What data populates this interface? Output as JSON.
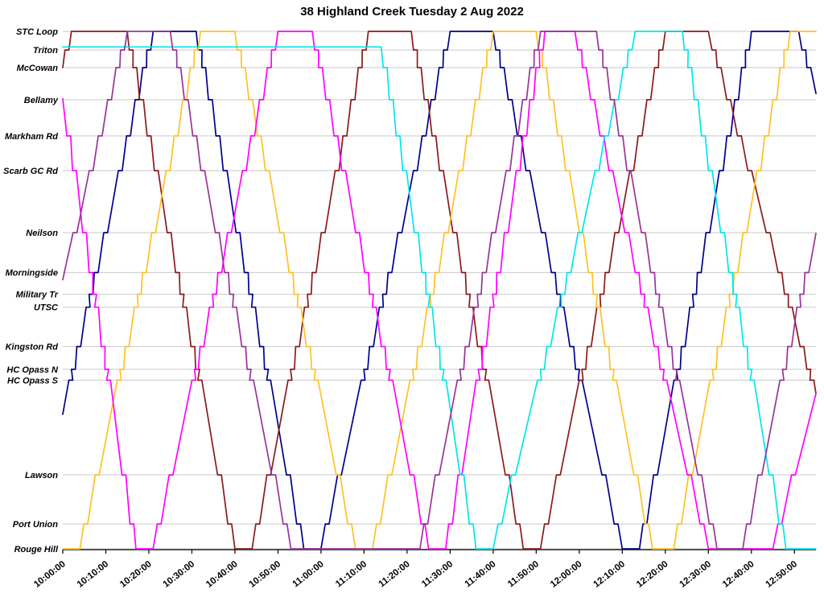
{
  "title": "38 Highland Creek Tuesday 2 Aug 2022",
  "chart_data": {
    "type": "line",
    "subtype": "marey-time-distance-diagram",
    "title": "38 Highland Creek Tuesday 2 Aug 2022",
    "xlabel": "",
    "ylabel": "",
    "grid": "horizontal-only",
    "legend_position": "none",
    "x_axis": {
      "unit": "clock-time",
      "start_min": 0,
      "end_min": 175,
      "tick_interval_min": 10,
      "tick_labels": [
        "10:00:00",
        "10:10:00",
        "10:20:00",
        "10:30:00",
        "10:40:00",
        "10:50:00",
        "11:00:00",
        "11:10:00",
        "11:20:00",
        "11:30:00",
        "11:40:00",
        "11:50:00",
        "12:00:00",
        "12:10:00",
        "12:20:00",
        "12:30:00",
        "12:40:00",
        "12:50:00"
      ]
    },
    "y_axis": {
      "range": [
        0,
        100
      ],
      "stops": [
        {
          "name": "STC Loop",
          "position": 100
        },
        {
          "name": "Triton",
          "position": 96.4
        },
        {
          "name": "McCowan",
          "position": 93.0
        },
        {
          "name": "Bellamy",
          "position": 86.8
        },
        {
          "name": "Markham Rd",
          "position": 79.8
        },
        {
          "name": "Scarb GC Rd",
          "position": 73.1
        },
        {
          "name": "Neilson",
          "position": 61.1
        },
        {
          "name": "Morningside",
          "position": 53.4
        },
        {
          "name": "Military Tr",
          "position": 49.2
        },
        {
          "name": "UTSC",
          "position": 46.7
        },
        {
          "name": "Kingston Rd",
          "position": 39.1
        },
        {
          "name": "HC Opass N",
          "position": 34.7
        },
        {
          "name": "HC Opass S",
          "position": 32.6
        },
        {
          "name": "Lawson",
          "position": 14.3
        },
        {
          "name": "Port Union",
          "position": 4.8
        },
        {
          "name": "Rouge Hill",
          "position": 0
        }
      ]
    },
    "series": [
      {
        "name": "run-navy",
        "color": "#00008B",
        "points": [
          [
            0,
            26
          ],
          [
            21,
            100
          ],
          [
            31,
            100
          ],
          [
            56,
            0
          ],
          [
            60,
            0
          ],
          [
            90,
            100
          ],
          [
            100,
            100
          ],
          [
            130,
            0
          ],
          [
            134,
            0
          ],
          [
            160,
            100
          ],
          [
            171,
            100
          ],
          [
            175,
            88
          ]
        ]
      },
      {
        "name": "run-darkred",
        "color": "#8B1A1A",
        "points": [
          [
            0,
            93
          ],
          [
            2,
            100
          ],
          [
            15,
            100
          ],
          [
            40,
            0
          ],
          [
            44,
            0
          ],
          [
            71,
            100
          ],
          [
            81,
            100
          ],
          [
            107,
            0
          ],
          [
            111,
            0
          ],
          [
            140,
            100
          ],
          [
            150,
            100
          ],
          [
            175,
            30
          ]
        ]
      },
      {
        "name": "run-gold",
        "color": "#FFC125",
        "points": [
          [
            0,
            0
          ],
          [
            4,
            0
          ],
          [
            32,
            100
          ],
          [
            40,
            100
          ],
          [
            68,
            0
          ],
          [
            72,
            0
          ],
          [
            100,
            100
          ],
          [
            110,
            100
          ],
          [
            137,
            0
          ],
          [
            142,
            0
          ],
          [
            169,
            100
          ],
          [
            175,
            100
          ]
        ]
      },
      {
        "name": "run-magenta",
        "color": "#FF00FF",
        "points": [
          [
            0,
            87
          ],
          [
            17,
            0
          ],
          [
            21,
            0
          ],
          [
            50,
            100
          ],
          [
            58,
            100
          ],
          [
            85,
            0
          ],
          [
            89,
            0
          ],
          [
            112,
            100
          ],
          [
            119,
            100
          ],
          [
            150,
            0
          ],
          [
            165,
            0
          ],
          [
            175,
            30
          ]
        ]
      },
      {
        "name": "run-cyan",
        "color": "#00E5EE",
        "points": [
          [
            0,
            97
          ],
          [
            74,
            97
          ],
          [
            96,
            0
          ],
          [
            100,
            0
          ],
          [
            133,
            100
          ],
          [
            144,
            100
          ],
          [
            168,
            0
          ],
          [
            175,
            0
          ]
        ]
      },
      {
        "name": "run-purple",
        "color": "#993399",
        "points": [
          [
            0,
            52
          ],
          [
            15,
            100
          ],
          [
            25,
            100
          ],
          [
            53,
            0
          ],
          [
            83,
            0
          ],
          [
            111,
            100
          ],
          [
            124,
            100
          ],
          [
            152,
            0
          ],
          [
            158,
            0
          ],
          [
            175,
            61
          ]
        ]
      }
    ]
  }
}
